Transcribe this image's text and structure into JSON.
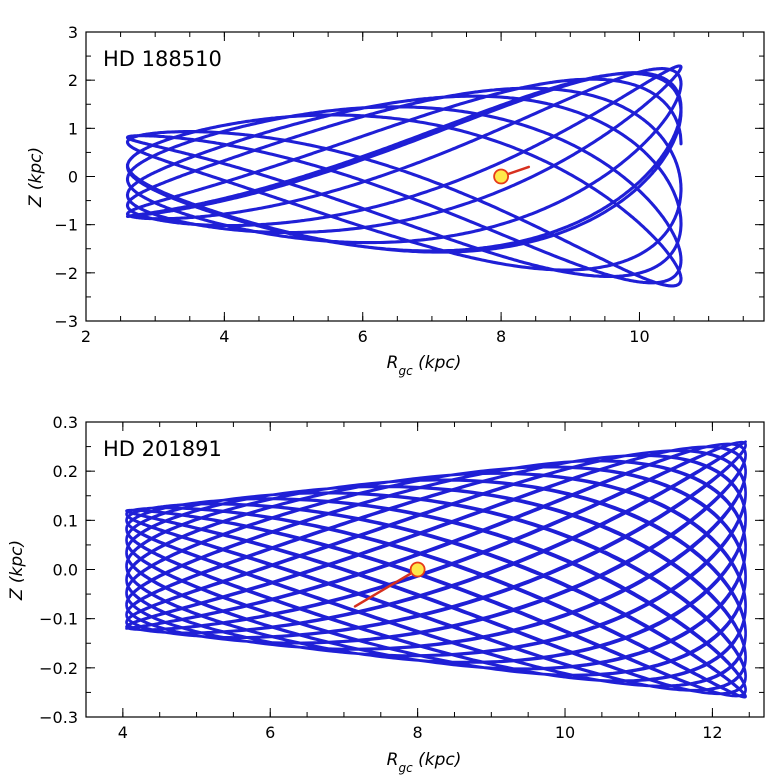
{
  "chart_data": [
    {
      "type": "line",
      "panel_label": "HD 188510",
      "xlabel": {
        "main": "R",
        "sub": "gc",
        "unit": " (kpc)"
      },
      "ylabel": "Z (kpc)",
      "xlim": [
        2,
        11.8
      ],
      "ylim": [
        -3,
        3
      ],
      "xticks": [
        2,
        4,
        6,
        8,
        10
      ],
      "yticks": [
        -3,
        -2,
        -1,
        0,
        1,
        2,
        3
      ],
      "xminor_step": 0.5,
      "yminor_step": 0.5,
      "orbit": {
        "r_min": 2.6,
        "r_max": 10.6,
        "z_max": 2.3,
        "color": "#1f1fd6"
      },
      "current_position": {
        "r": 8.0,
        "z": 0.0
      },
      "recent_track": [
        {
          "r": 8.0,
          "z": 0.0
        },
        {
          "r": 8.4,
          "z": 0.2
        }
      ],
      "colors": {
        "orbit": "#1f1fd6",
        "track": "#d7301f",
        "marker_fill": "#ffe84a",
        "marker_edge": "#e63a1a"
      }
    },
    {
      "type": "line",
      "panel_label": "HD 201891",
      "xlabel": {
        "main": "R",
        "sub": "gc",
        "unit": " (kpc)"
      },
      "ylabel": "Z (kpc)",
      "xlim": [
        3.5,
        12.7
      ],
      "ylim": [
        -0.3,
        0.3
      ],
      "xticks": [
        4,
        6,
        8,
        10,
        12
      ],
      "yticks": [
        -0.3,
        -0.2,
        -0.1,
        0.0,
        0.1,
        0.2,
        0.3
      ],
      "xminor_step": 0.5,
      "yminor_step": 0.05,
      "orbit": {
        "r_min": 4.05,
        "r_max": 12.45,
        "z_at_rmin": 0.12,
        "z_at_rmax": 0.26,
        "color": "#1f1fd6"
      },
      "current_position": {
        "r": 8.0,
        "z": 0.0
      },
      "recent_track": [
        {
          "r": 8.0,
          "z": 0.0
        },
        {
          "r": 7.15,
          "z": -0.075
        }
      ],
      "colors": {
        "orbit": "#1f1fd6",
        "track": "#d7301f",
        "marker_fill": "#ffe84a",
        "marker_edge": "#e63a1a"
      }
    }
  ]
}
